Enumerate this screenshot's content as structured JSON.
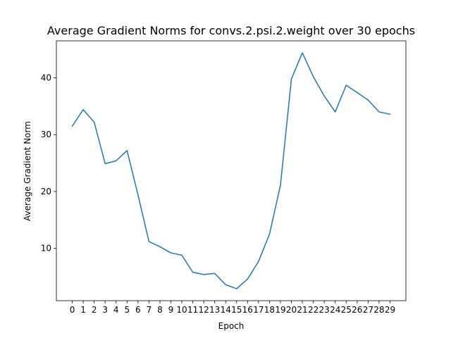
{
  "chart_data": {
    "type": "line",
    "title": "Average Gradient Norms for convs.2.psi.2.weight over 30 epochs",
    "xlabel": "Epoch",
    "ylabel": "Average Gradient Norm",
    "x": [
      0,
      1,
      2,
      3,
      4,
      5,
      6,
      7,
      8,
      9,
      10,
      11,
      12,
      13,
      14,
      15,
      16,
      17,
      18,
      19,
      20,
      21,
      22,
      23,
      24,
      25,
      26,
      27,
      28,
      29
    ],
    "x_tick_labels": [
      "0",
      "1",
      "2",
      "3",
      "4",
      "5",
      "6",
      "7",
      "8",
      "9",
      "10",
      "11",
      "12",
      "13",
      "14",
      "15",
      "16",
      "17",
      "18",
      "19",
      "20",
      "21",
      "22",
      "23",
      "24",
      "25",
      "26",
      "27",
      "28",
      "29"
    ],
    "xlim": [
      -1.45,
      30.45
    ],
    "ylim": [
      0.8,
      46.5
    ],
    "y_ticks": [
      10,
      20,
      30,
      40
    ],
    "y_tick_labels": [
      "10",
      "20",
      "30",
      "40"
    ],
    "series": [
      {
        "color": "#1f77b4",
        "values": [
          31.5,
          34.4,
          32.2,
          24.9,
          25.4,
          27.2,
          19.4,
          11.2,
          10.3,
          9.2,
          8.8,
          5.8,
          5.4,
          5.6,
          3.6,
          2.9,
          4.6,
          7.7,
          12.5,
          21.1,
          39.8,
          44.4,
          40.2,
          36.8,
          34.0,
          38.7,
          37.4,
          36.1,
          34.0,
          33.6
        ]
      }
    ],
    "grid": false,
    "legend": "none"
  }
}
